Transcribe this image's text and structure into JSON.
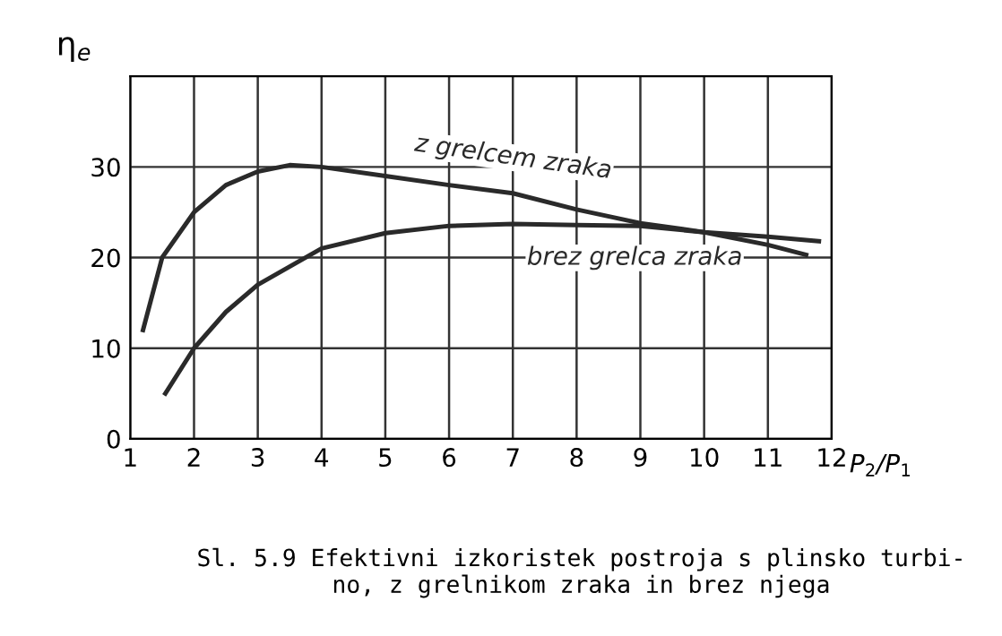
{
  "chart_data": {
    "type": "line",
    "xlabel": "P$_{2}$/P$_{1}$",
    "ylabel": "η$_{e}$",
    "series": [
      {
        "name": "z grelcem zraka",
        "color": "#2a2a2a",
        "x": [
          1.2,
          1.5,
          2,
          2.5,
          3,
          3.5,
          4,
          5,
          6,
          7,
          8,
          9,
          10,
          11,
          11.8
        ],
        "values": [
          12,
          20,
          25,
          28,
          29.5,
          30.2,
          30,
          29,
          28,
          27.1,
          25.3,
          23.8,
          22.8,
          22.3,
          21.8
        ]
      },
      {
        "name": "brez grelca zraka",
        "color": "#2a2a2a",
        "x": [
          1.55,
          2,
          2.5,
          3,
          4,
          5,
          6,
          7,
          8,
          9,
          10,
          11,
          11.6
        ],
        "values": [
          5,
          10,
          14,
          17,
          21,
          22.7,
          23.5,
          23.7,
          23.6,
          23.5,
          22.8,
          21.4,
          20.3
        ]
      }
    ],
    "xlim": [
      1,
      12
    ],
    "ylim": [
      0,
      40
    ],
    "xticks": [
      1,
      2,
      3,
      4,
      5,
      6,
      7,
      8,
      9,
      10,
      11,
      12
    ],
    "yticks": [
      0,
      10,
      20,
      30
    ],
    "grid": true,
    "marker": "none",
    "line_style": "solid",
    "annotations": [
      "Sl. 5.9 Efektivni izkoristek postroja s plinsko turbi-\nno, z grelnikom zraka in brez njega"
    ]
  }
}
